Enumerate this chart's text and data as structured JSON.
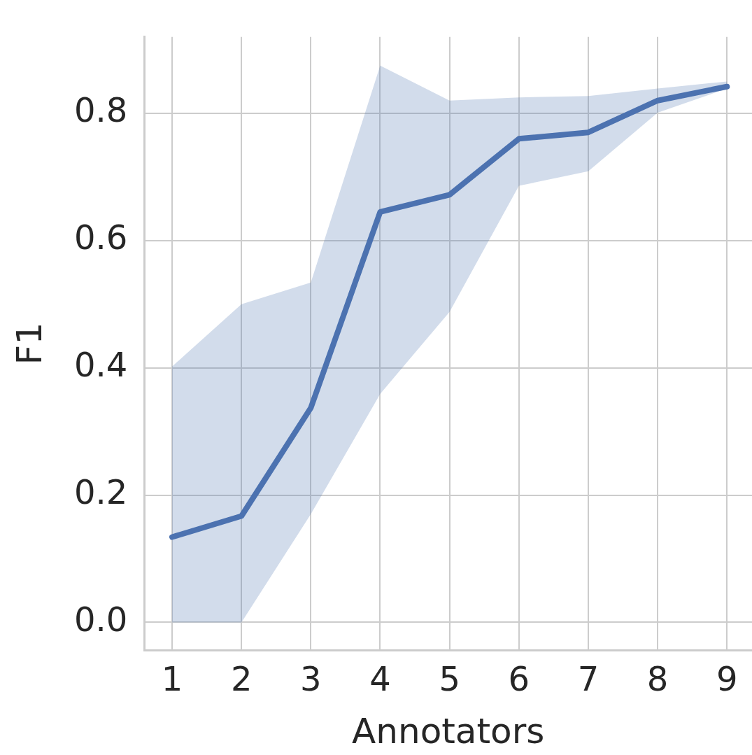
{
  "chart_data": {
    "type": "line",
    "xlabel": "Annotators",
    "ylabel": "F1",
    "x": [
      1,
      2,
      3,
      4,
      5,
      6,
      7,
      8,
      9
    ],
    "series": [
      {
        "color": "#4c72b0",
        "values": [
          0.134,
          0.167,
          0.337,
          0.645,
          0.672,
          0.76,
          0.77,
          0.82,
          0.842
        ],
        "lower": [
          0,
          0,
          0.17,
          0.359,
          0.488,
          0.686,
          0.709,
          0.801,
          0.839
        ],
        "upper": [
          0.402,
          0.5,
          0.534,
          0.875,
          0.82,
          0.825,
          0.827,
          0.839,
          0.85
        ]
      }
    ],
    "xlim": [
      0.6,
      9.36
    ],
    "ylim": [
      -0.044,
      0.92
    ],
    "xticks": [
      1,
      2,
      3,
      4,
      5,
      6,
      7,
      8,
      9
    ],
    "yticks": [
      {
        "value": 0,
        "label": "0.0"
      },
      {
        "value": 0.2,
        "label": "0.2"
      },
      {
        "value": 0.4,
        "label": "0.4"
      },
      {
        "value": 0.6,
        "label": "0.6"
      },
      {
        "value": 0.8,
        "label": "0.8"
      }
    ],
    "grid": true,
    "legend": false,
    "marker": "none",
    "line_style": "solid"
  }
}
